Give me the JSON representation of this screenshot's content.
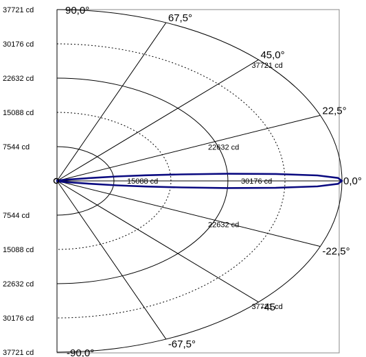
{
  "chart_data": {
    "type": "polar",
    "title": "",
    "radial_max": 37721,
    "radial_unit": "cd",
    "left_tick_labels": {
      "upper": [
        "37721 cd",
        "30176 cd",
        "22632 cd",
        "15088 cd",
        "7544 cd"
      ],
      "lower": [
        "7544 cd",
        "15088 cd",
        "22632 cd",
        "30176 cd",
        "37721 cd"
      ]
    },
    "left_tick_values": [
      37721,
      30176,
      22632,
      15088,
      7544
    ],
    "rings": [
      {
        "value": 7544,
        "style": "solid"
      },
      {
        "value": 15088,
        "style": "dotted"
      },
      {
        "value": 22632,
        "style": "solid"
      },
      {
        "value": 30176,
        "style": "dotted"
      },
      {
        "value": 37721,
        "style": "solid"
      }
    ],
    "angle_labels": [
      {
        "angle": 90,
        "text": "90,0°"
      },
      {
        "angle": 67.5,
        "text": "67,5°"
      },
      {
        "angle": 45,
        "text": "45,0°"
      },
      {
        "angle": 22.5,
        "text": "22,5°"
      },
      {
        "angle": 0,
        "text": "0,0°"
      },
      {
        "angle": -22.5,
        "text": "-22,5°"
      },
      {
        "angle": -45,
        "text": "-45"
      },
      {
        "angle": -67.5,
        "text": "-67,5°"
      },
      {
        "angle": -90,
        "text": "-90,0°"
      }
    ],
    "ring_labels": [
      {
        "text": "37721 cd",
        "value": 37721,
        "angle": 45
      },
      {
        "text": "22632 cd",
        "value": 22632,
        "angle": 22.5
      },
      {
        "text": "15088 cd",
        "value": 15088,
        "angle": 0
      },
      {
        "text": "30176 cd",
        "value": 30176,
        "angle": 0
      },
      {
        "text": "22632 cd",
        "value": 22632,
        "angle": -22.5
      },
      {
        "text": "37721 cd",
        "value": 37721,
        "angle": -45
      }
    ],
    "series": [
      {
        "color": "#0a0a80",
        "points": [
          {
            "angle": 0,
            "value": 37721
          },
          {
            "angle": 1,
            "value": 37200
          },
          {
            "angle": 2,
            "value": 34500
          },
          {
            "angle": 3,
            "value": 29000
          },
          {
            "angle": 4,
            "value": 22500
          },
          {
            "angle": 5,
            "value": 16500
          },
          {
            "angle": 6,
            "value": 11800
          },
          {
            "angle": 7,
            "value": 8000
          },
          {
            "angle": 8,
            "value": 5000
          },
          {
            "angle": 10,
            "value": 2300
          },
          {
            "angle": 15,
            "value": 800
          },
          {
            "angle": 30,
            "value": 250
          },
          {
            "angle": 60,
            "value": 100
          },
          {
            "angle": 90,
            "value": 60
          }
        ]
      }
    ]
  }
}
